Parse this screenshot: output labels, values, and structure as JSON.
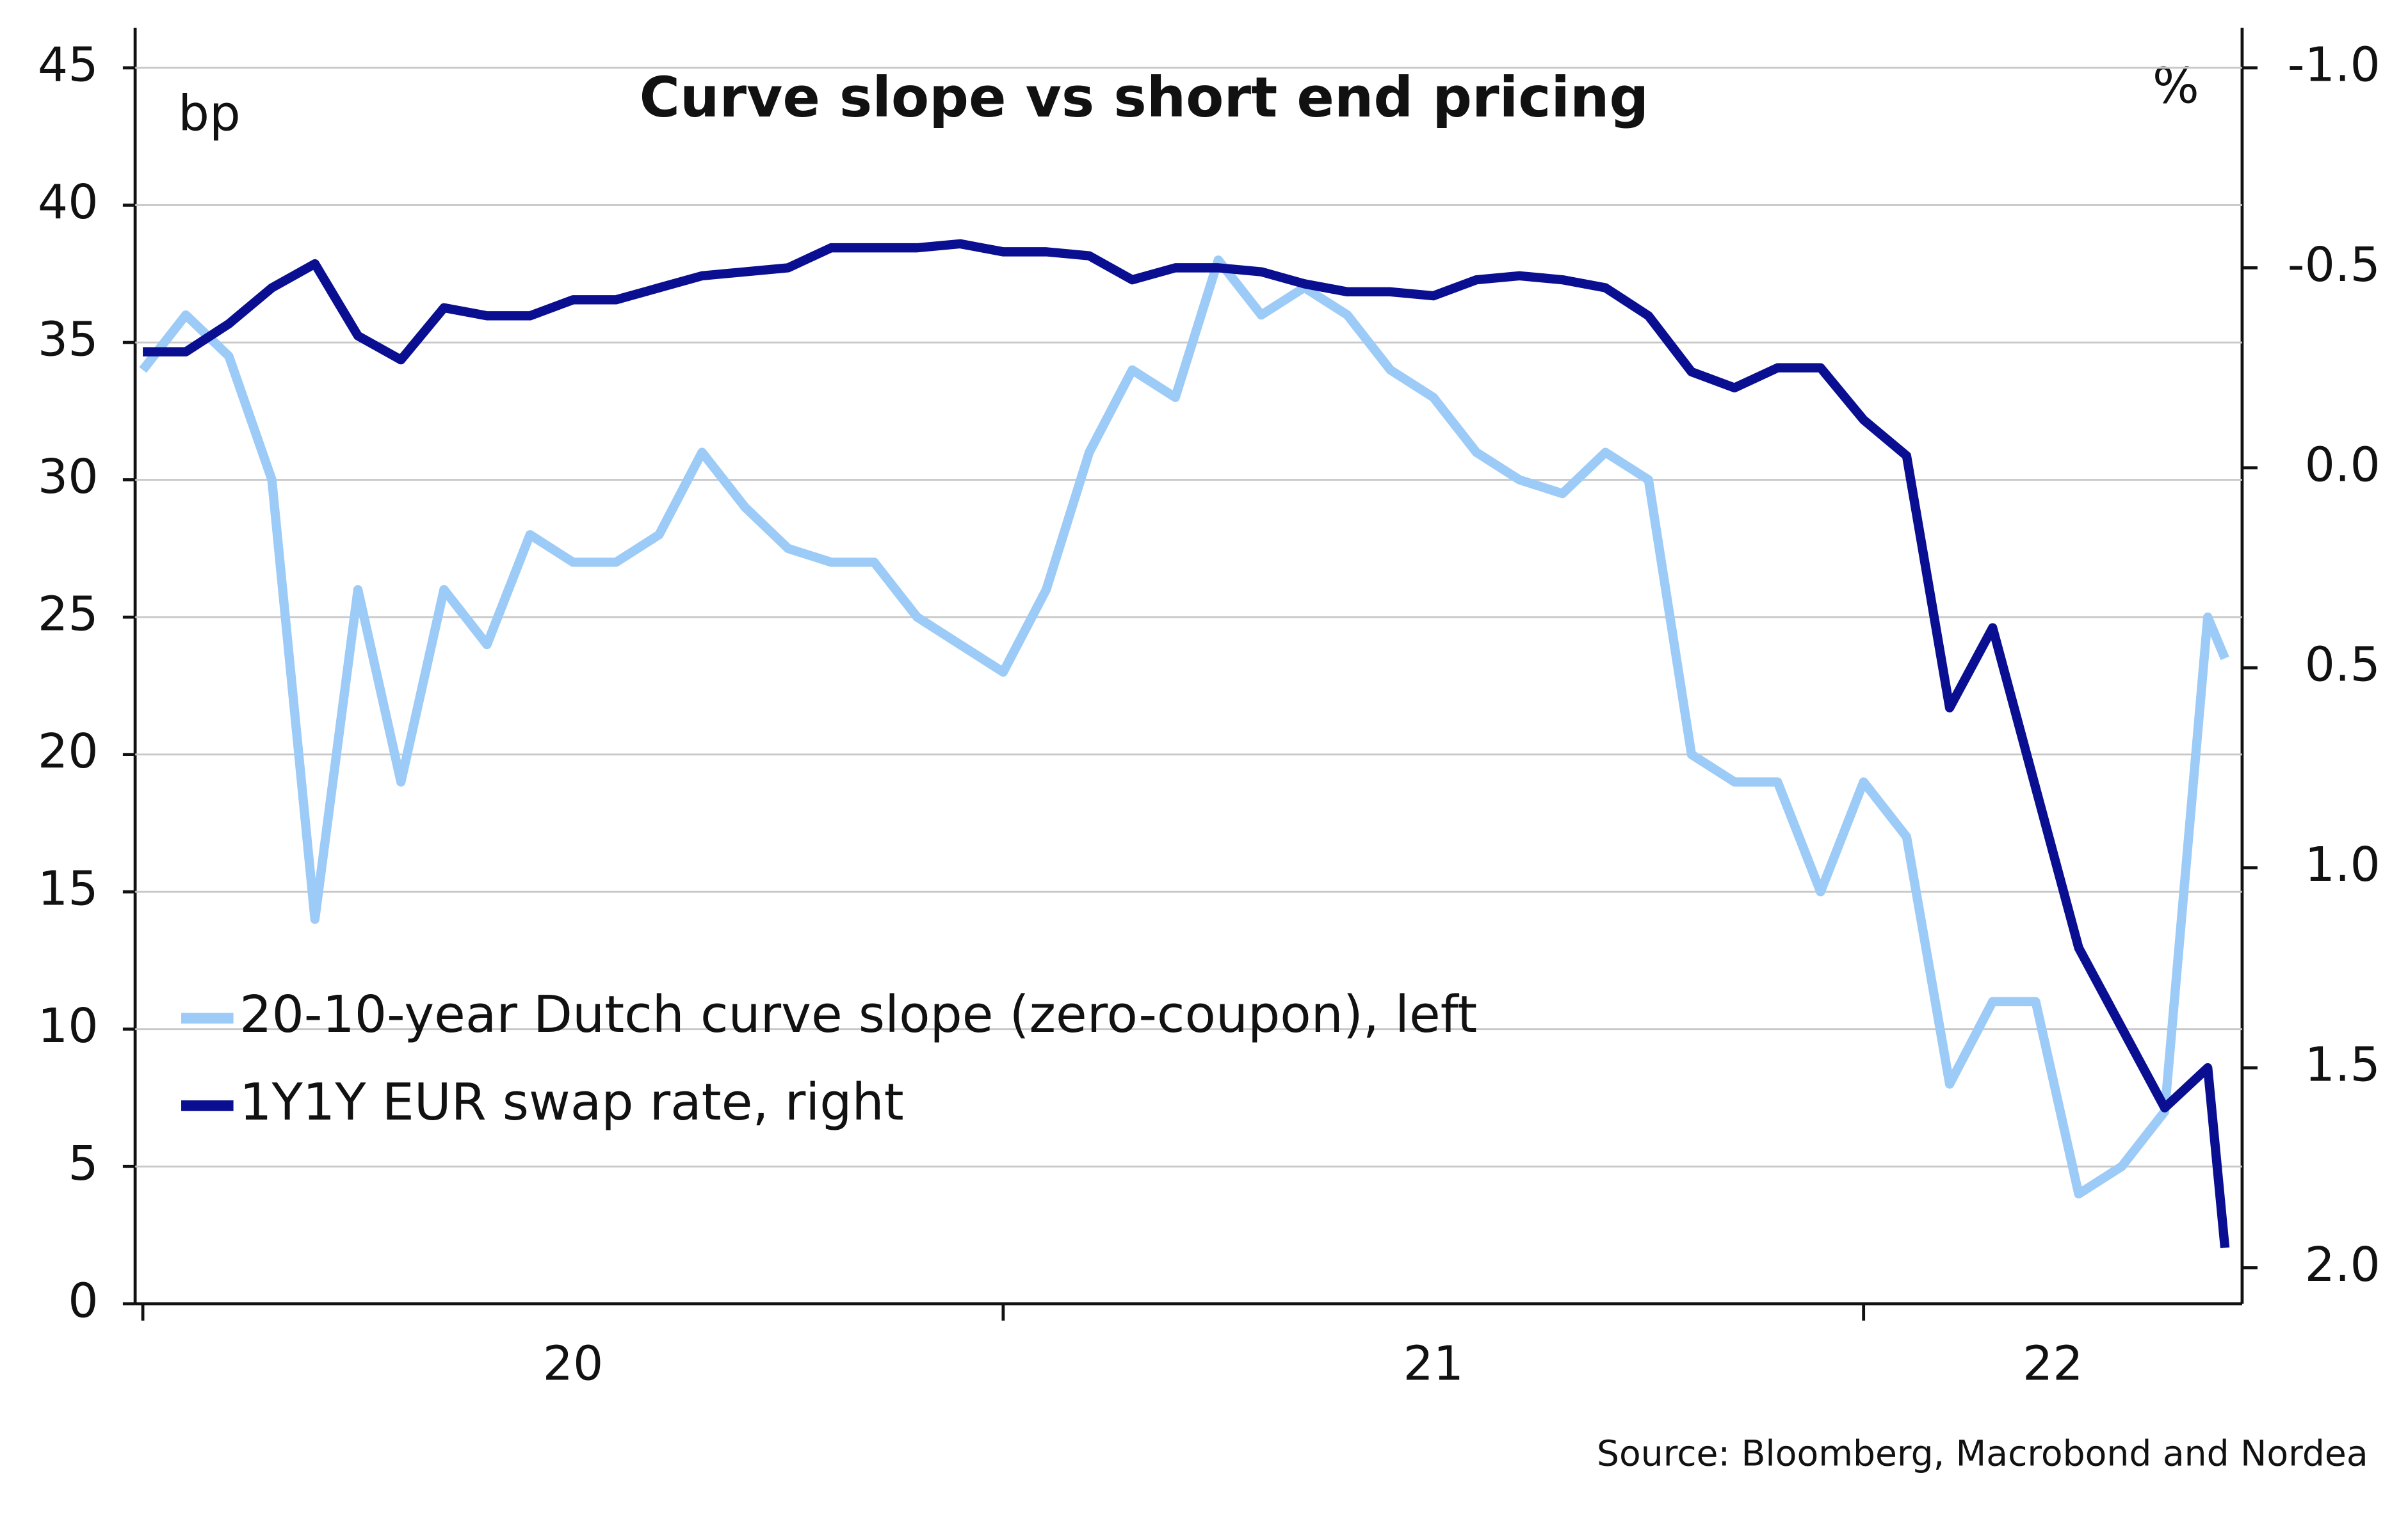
{
  "chart_data": {
    "type": "line",
    "title": "Curve slope vs short end pricing",
    "y_unit": "bp",
    "y2_unit": "%",
    "source": "Source: Bloomberg, Macrobond and Nordea",
    "legend": "lower left",
    "grid": true,
    "xlim": [
      2020,
      2022.44
    ],
    "xticks": [
      2020,
      2021,
      2022
    ],
    "xtick_labels": [
      {
        "value": 2020.5,
        "label": "20"
      },
      {
        "value": 2021.5,
        "label": "21"
      },
      {
        "value": 2022.22,
        "label": "22"
      }
    ],
    "ylim": [
      0,
      45
    ],
    "yticks": [
      0,
      5,
      10,
      15,
      20,
      25,
      30,
      35,
      40,
      45
    ],
    "y2lim": [
      2.09,
      -1.0
    ],
    "y2ticks": [
      {
        "value": -1.0,
        "label": "-1.0"
      },
      -0.5,
      {
        "value": 0.0,
        "label": "0.0"
      },
      0.5,
      {
        "value": 1.0,
        "label": "1.0"
      },
      1.5,
      {
        "value": 2.0,
        "label": "2.0"
      }
    ],
    "x": [
      2020.0,
      2020.05,
      2020.1,
      2020.15,
      2020.2,
      2020.25,
      2020.3,
      2020.35,
      2020.4,
      2020.45,
      2020.5,
      2020.55,
      2020.6,
      2020.65,
      2020.7,
      2020.75,
      2020.8,
      2020.85,
      2020.9,
      2020.95,
      2021.0,
      2021.05,
      2021.1,
      2021.15,
      2021.2,
      2021.25,
      2021.3,
      2021.35,
      2021.4,
      2021.45,
      2021.5,
      2021.55,
      2021.6,
      2021.65,
      2021.7,
      2021.75,
      2021.8,
      2021.85,
      2021.9,
      2021.95,
      2022.0,
      2022.05,
      2022.1,
      2022.15,
      2022.2,
      2022.25,
      2022.3,
      2022.35,
      2022.4,
      2022.42
    ],
    "series": [
      {
        "name": "20-10-year Dutch curve slope (zero-coupon), left",
        "color": "#9ccbf7",
        "values": [
          34,
          36,
          34.5,
          30,
          14,
          26,
          19,
          26,
          24,
          28,
          27,
          27,
          28,
          31,
          29,
          27.5,
          27,
          27,
          25,
          24,
          23,
          26,
          31,
          34,
          33,
          38,
          36,
          37,
          36,
          34,
          33,
          31,
          30,
          29.5,
          31,
          30,
          20,
          19,
          19,
          15,
          19,
          17,
          8,
          11,
          11,
          4,
          5,
          7,
          25,
          23.5
        ]
      },
      {
        "name": "1Y1Y EUR swap rate, right",
        "color": "#0a0f91",
        "axis": "y2",
        "values": [
          -0.29,
          -0.29,
          -0.36,
          -0.45,
          -0.51,
          -0.33,
          -0.27,
          -0.4,
          -0.38,
          -0.38,
          -0.42,
          -0.42,
          -0.45,
          -0.48,
          -0.49,
          -0.5,
          -0.55,
          -0.55,
          -0.55,
          -0.56,
          -0.54,
          -0.54,
          -0.53,
          -0.47,
          -0.5,
          -0.5,
          -0.49,
          -0.46,
          -0.44,
          -0.44,
          -0.43,
          -0.47,
          -0.48,
          -0.47,
          -0.45,
          -0.38,
          -0.24,
          -0.2,
          -0.25,
          -0.25,
          -0.12,
          -0.03,
          0.6,
          0.4,
          0.8,
          1.2,
          1.4,
          1.6,
          1.5,
          1.95
        ]
      }
    ]
  }
}
